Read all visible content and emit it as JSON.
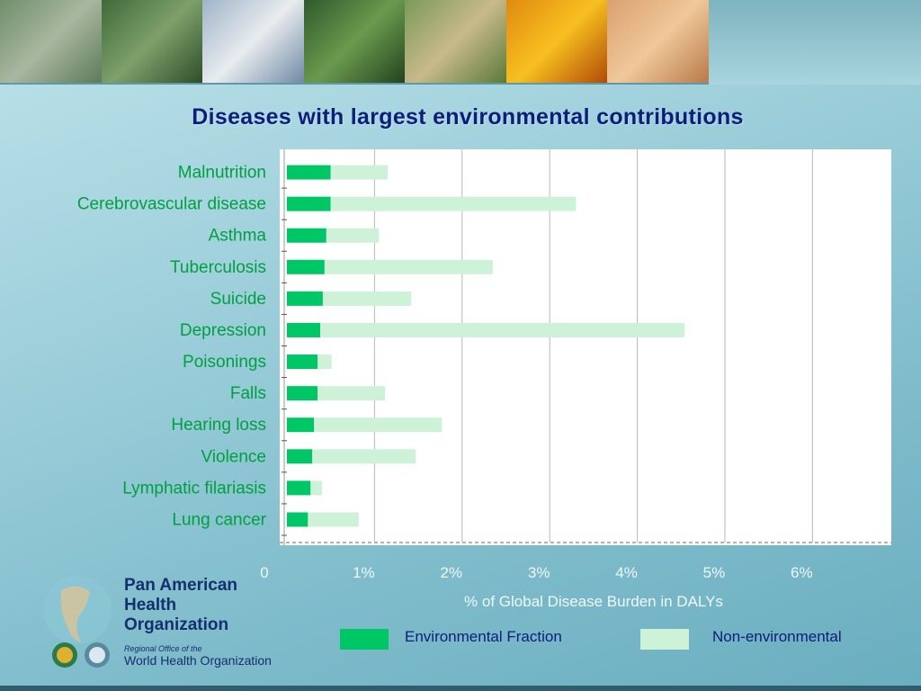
{
  "colors": {
    "environmental": "#00c765",
    "non_environmental": "#cdf2d8",
    "category_text": "#00a040",
    "title": "#0b1e7a",
    "tick_text": "#eef8fa"
  },
  "chart_data": {
    "type": "bar",
    "orientation": "horizontal",
    "stacked": true,
    "title": "Diseases with largest environmental contributions",
    "xlabel": "% of Global Disease Burden in DALYs",
    "ylabel": "",
    "xlim": [
      0,
      6.9
    ],
    "x_ticks": [
      0,
      1,
      2,
      3,
      4,
      5,
      6
    ],
    "x_tick_labels": [
      "0",
      "1%",
      "2%",
      "3%",
      "4%",
      "5%",
      "6%"
    ],
    "grid": "vertical",
    "legend_position": "bottom",
    "categories": [
      "Malnutrition",
      "Cerebrovascular disease",
      "Asthma",
      "Tuberculosis",
      "Suicide",
      "Depression",
      "Poisonings",
      "Falls",
      "Hearing loss",
      "Violence",
      "Lymphatic filariasis",
      "Lung cancer"
    ],
    "series": [
      {
        "name": "Environmental Fraction",
        "values": [
          0.5,
          0.5,
          0.45,
          0.43,
          0.41,
          0.38,
          0.35,
          0.35,
          0.31,
          0.29,
          0.27,
          0.24
        ]
      },
      {
        "name": "Non-environmental",
        "values": [
          0.65,
          2.8,
          0.6,
          1.92,
          1.01,
          4.16,
          0.16,
          0.77,
          1.46,
          1.18,
          0.13,
          0.58
        ]
      }
    ]
  },
  "logo": {
    "name": "Pan American\nHealth\nOrganization",
    "sub": "Regional Office of the",
    "who": "World Health Organization"
  }
}
